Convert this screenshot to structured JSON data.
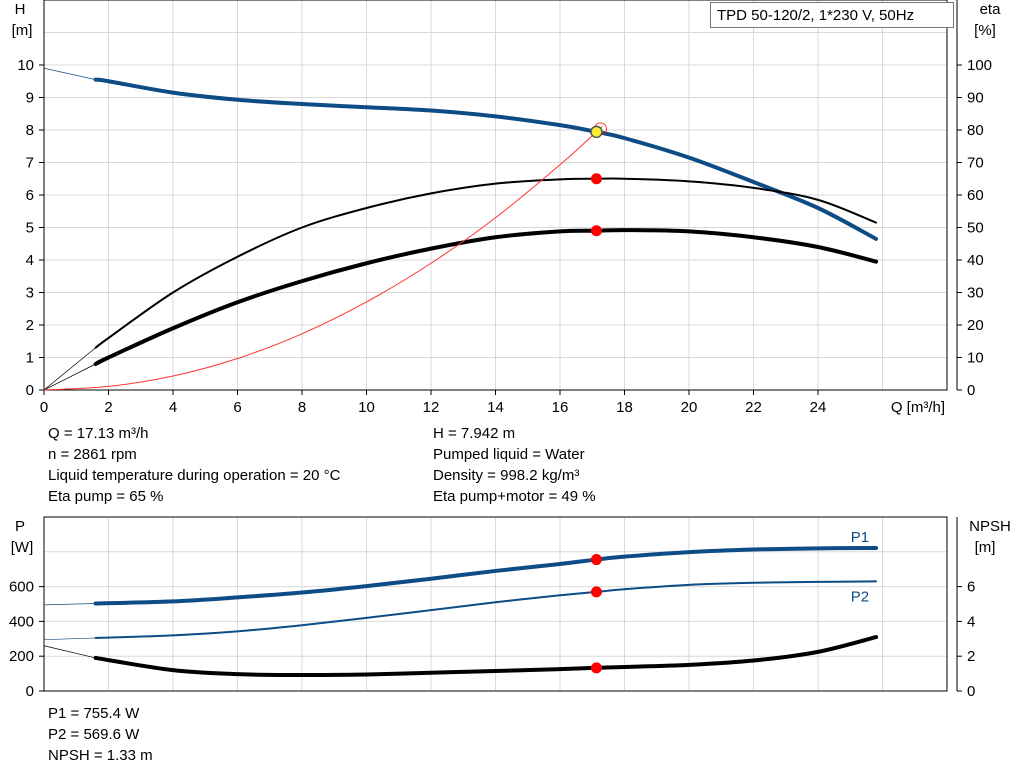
{
  "title": "TPD 50-120/2, 1*230 V, 50Hz",
  "info_top_left": [
    "Q = 17.13 m³/h",
    "n = 2861 rpm",
    "Liquid temperature during operation = 20 °C",
    "Eta pump = 65 %"
  ],
  "info_top_right": [
    "H = 7.942 m",
    "Pumped liquid = Water",
    "Density = 998.2 kg/m³",
    "Eta pump+motor = 49 %"
  ],
  "info_bottom": [
    "P1 = 755.4 W",
    "P2 = 569.6 W",
    "NPSH = 1.33 m"
  ],
  "colors": {
    "head": "#0e4c86",
    "eta": "#000000",
    "system": "#ff3333",
    "point": "#ff0000",
    "duty": "#ffee33",
    "grid": "#d9d9d9"
  },
  "chart_data": [
    {
      "type": "line",
      "xlabel": "Q [m³/h]",
      "ylabel": "H\n[m]",
      "y2label": "eta\n[%]",
      "xlim": [
        0,
        28
      ],
      "ylim": [
        0,
        12
      ],
      "y2lim": [
        0,
        120
      ],
      "grid": true,
      "xticks": [
        0,
        2,
        4,
        6,
        8,
        10,
        12,
        14,
        16,
        18,
        20,
        22,
        24
      ],
      "yticks": [
        0,
        1,
        2,
        3,
        4,
        5,
        6,
        7,
        8,
        9,
        10
      ],
      "y2ticks": [
        0,
        10,
        20,
        30,
        40,
        50,
        60,
        70,
        80,
        90,
        100
      ],
      "series": [
        {
          "id": "head",
          "axis": "left",
          "x": [
            1.6,
            2,
            4,
            6,
            8,
            10,
            12,
            14,
            16,
            17.13,
            18,
            20,
            22,
            24,
            25.8
          ],
          "y": [
            9.55,
            9.5,
            9.15,
            8.93,
            8.8,
            8.7,
            8.6,
            8.42,
            8.15,
            7.942,
            7.75,
            7.15,
            6.4,
            5.6,
            4.65
          ],
          "extrapolation": {
            "x": [
              0,
              1.6
            ],
            "y": [
              9.9,
              9.55
            ]
          }
        },
        {
          "id": "eta-pump",
          "axis": "right",
          "x": [
            1.6,
            2,
            4,
            6,
            8,
            10,
            12,
            14,
            16,
            17.13,
            18,
            20,
            22,
            24,
            25.8
          ],
          "y": [
            13,
            16,
            30,
            41,
            50,
            56,
            60.5,
            63.5,
            64.8,
            65,
            65,
            64.2,
            62.2,
            58.5,
            51.5
          ],
          "extrapolation": {
            "x": [
              0,
              1.6
            ],
            "y": [
              0,
              13
            ]
          }
        },
        {
          "id": "eta-pump-motor",
          "axis": "right",
          "x": [
            1.6,
            2,
            4,
            6,
            8,
            10,
            12,
            14,
            16,
            17.13,
            18,
            20,
            22,
            24,
            25.8
          ],
          "y": [
            8,
            10,
            19,
            27,
            33.5,
            39,
            43.5,
            47,
            48.8,
            49,
            49.2,
            48.8,
            47,
            44,
            39.5
          ],
          "extrapolation": {
            "x": [
              0,
              1.6
            ],
            "y": [
              0,
              8
            ]
          }
        },
        {
          "id": "system-curve",
          "axis": "left",
          "x": [
            0,
            2,
            4,
            6,
            8,
            10,
            12,
            14,
            16,
            17.13,
            17.3
          ],
          "y": [
            0,
            0.11,
            0.43,
            0.97,
            1.73,
            2.71,
            3.9,
            5.3,
            6.93,
            7.942,
            8.1
          ]
        }
      ],
      "points": [
        {
          "series": "head",
          "x": 17.13,
          "y": 7.942
        },
        {
          "series": "eta-pump",
          "x": 17.13,
          "y": 65
        },
        {
          "series": "eta-pump-motor",
          "x": 17.13,
          "y": 49
        }
      ]
    },
    {
      "type": "line",
      "ylabel": "P\n[W]",
      "y2label": "NPSH\n[m]",
      "xlim": [
        0,
        28
      ],
      "ylim": [
        0,
        1000
      ],
      "y2lim": [
        0,
        10
      ],
      "grid": true,
      "yticks": [
        0,
        200,
        400,
        600
      ],
      "y2ticks": [
        0,
        2,
        4,
        6
      ],
      "series": [
        {
          "id": "P1",
          "name": "P1",
          "axis": "left",
          "x": [
            1.6,
            4,
            6,
            8,
            10,
            12,
            14,
            16,
            17.13,
            18,
            20,
            22,
            24,
            25.8
          ],
          "y": [
            503,
            515,
            538,
            566,
            603,
            645,
            690,
            730,
            755.4,
            772,
            798,
            813,
            820,
            822
          ],
          "extrapolation": {
            "x": [
              0,
              1.6
            ],
            "y": [
              495,
              503
            ]
          }
        },
        {
          "id": "P2",
          "name": "P2",
          "axis": "left",
          "x": [
            1.6,
            4,
            6,
            8,
            10,
            12,
            14,
            16,
            17.13,
            18,
            20,
            22,
            24,
            25.8
          ],
          "y": [
            305,
            320,
            343,
            378,
            420,
            465,
            510,
            550,
            569.6,
            585,
            610,
            622,
            627,
            630
          ],
          "extrapolation": {
            "x": [
              0,
              1.6
            ],
            "y": [
              295,
              305
            ]
          }
        },
        {
          "id": "NPSH",
          "axis": "right",
          "x": [
            1.6,
            4,
            6,
            8,
            10,
            12,
            14,
            16,
            17.13,
            18,
            20,
            22,
            24,
            25.8
          ],
          "y": [
            1.9,
            1.2,
            0.97,
            0.92,
            0.95,
            1.05,
            1.15,
            1.26,
            1.33,
            1.38,
            1.5,
            1.75,
            2.25,
            3.1
          ],
          "extrapolation": {
            "x": [
              0,
              1.6
            ],
            "y": [
              2.6,
              1.9
            ]
          }
        }
      ],
      "points": [
        {
          "series": "P1",
          "x": 17.13,
          "y": 755.4
        },
        {
          "series": "P2",
          "x": 17.13,
          "y": 569.6
        },
        {
          "series": "NPSH",
          "x": 17.13,
          "y": 1.33
        }
      ]
    }
  ]
}
